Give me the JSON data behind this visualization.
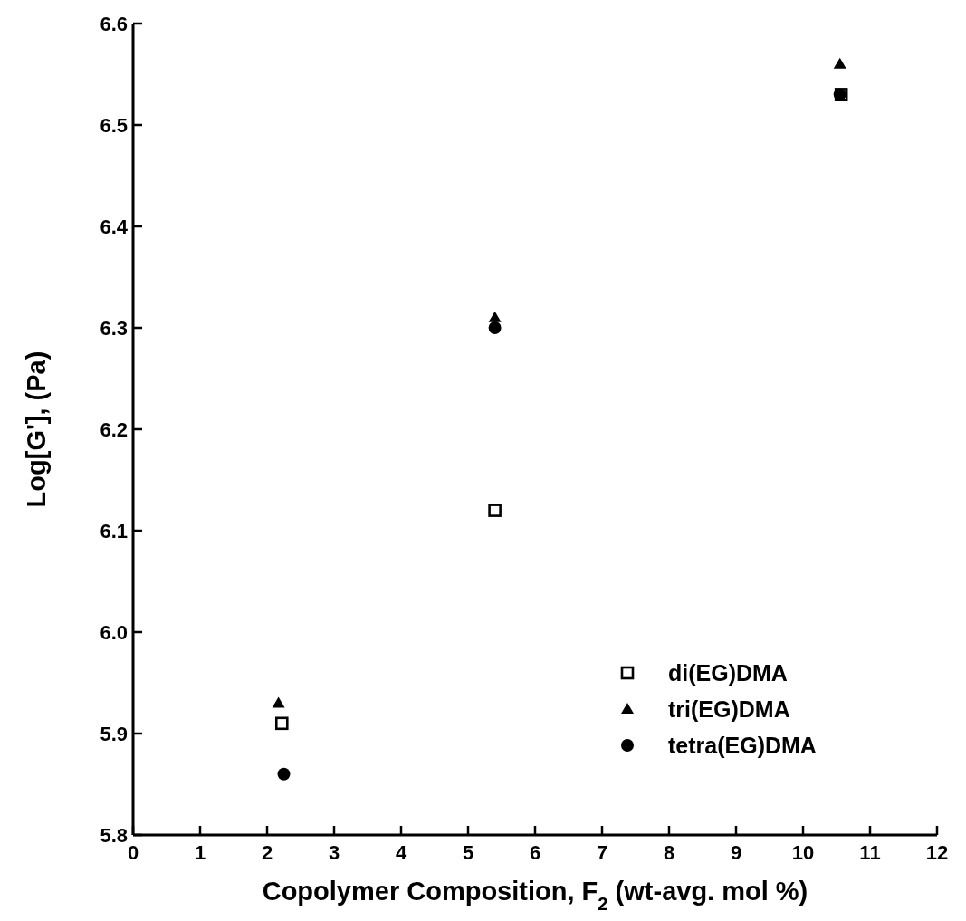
{
  "chart_data": {
    "type": "scatter",
    "xlabel": "Copolymer Composition, F$_{2}$ (wt-avg. mol %)",
    "ylabel": "Log[G'], (Pa)",
    "xlim": [
      0,
      12
    ],
    "xticks": [
      0,
      1,
      2,
      3,
      4,
      5,
      6,
      7,
      8,
      9,
      10,
      11,
      12
    ],
    "ylim": [
      5.8,
      6.6
    ],
    "yticks": [
      5.8,
      5.9,
      {
        "value": 6,
        "label": "6.0"
      },
      6.1,
      6.2,
      6.3,
      6.4,
      6.5,
      6.6
    ],
    "legend": "bottom right",
    "grid": false,
    "series": [
      {
        "name": "di(EG)DMA",
        "color": "#000000",
        "marker": "square",
        "x": [
          2.22,
          5.4,
          10.57
        ],
        "values": [
          5.91,
          6.12,
          6.53
        ]
      },
      {
        "name": "tri(EG)DMA",
        "color": "#000000",
        "marker": "triangle",
        "x": [
          2.17,
          5.4,
          10.55
        ],
        "values": [
          5.93,
          6.31,
          6.56
        ]
      },
      {
        "name": "tetra(EG)DMA",
        "color": "#000000",
        "marker": "circle",
        "x": [
          2.25,
          5.4,
          10.55
        ],
        "values": [
          5.86,
          6.3,
          6.53
        ]
      }
    ]
  }
}
